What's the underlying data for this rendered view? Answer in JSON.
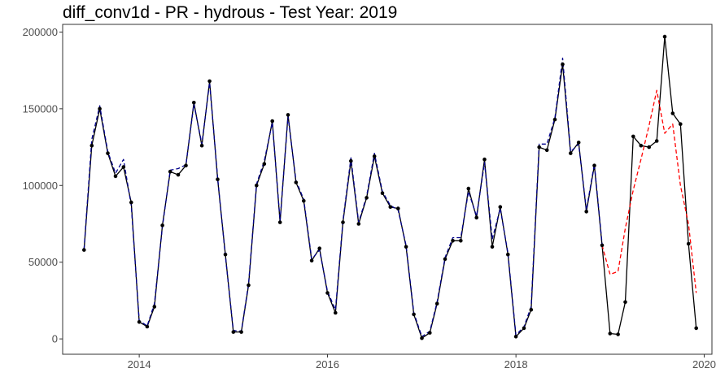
{
  "chart_data": {
    "type": "line",
    "title": "diff_conv1d - PR - hydrous - Test Year: 2019",
    "xlabel": "",
    "ylabel": "",
    "x_axis": {
      "type": "date",
      "range": [
        "2013-03-10",
        "2020-01-31"
      ],
      "ticks": [
        {
          "value": "2014-01-01",
          "label": "2014"
        },
        {
          "value": "2016-01-01",
          "label": "2016"
        },
        {
          "value": "2018-01-01",
          "label": "2018"
        },
        {
          "value": "2020-01-01",
          "label": "2020"
        }
      ]
    },
    "y_axis": {
      "range": [
        -10000,
        205000
      ],
      "ticks": [
        {
          "value": 0,
          "label": "0"
        },
        {
          "value": 50000,
          "label": "50000"
        },
        {
          "value": 100000,
          "label": "100000"
        },
        {
          "value": 150000,
          "label": "150000"
        },
        {
          "value": 200000,
          "label": "200000"
        }
      ]
    },
    "grid": false,
    "legend": "none",
    "series": [
      {
        "color": "#000000",
        "style": "solid-with-points",
        "points": [
          [
            "2013-06-01",
            58000
          ],
          [
            "2013-07-01",
            126000
          ],
          [
            "2013-08-01",
            150000
          ],
          [
            "2013-09-01",
            121000
          ],
          [
            "2013-10-01",
            106000
          ],
          [
            "2013-11-01",
            112000
          ],
          [
            "2013-12-01",
            89000
          ],
          [
            "2014-01-01",
            11000
          ],
          [
            "2014-02-01",
            8000
          ],
          [
            "2014-03-01",
            21000
          ],
          [
            "2014-04-01",
            74000
          ],
          [
            "2014-05-01",
            109000
          ],
          [
            "2014-06-01",
            107000
          ],
          [
            "2014-07-01",
            113000
          ],
          [
            "2014-08-01",
            154000
          ],
          [
            "2014-09-01",
            126000
          ],
          [
            "2014-10-01",
            168000
          ],
          [
            "2014-11-01",
            104000
          ],
          [
            "2014-12-01",
            55000
          ],
          [
            "2015-01-01",
            4500
          ],
          [
            "2015-02-01",
            4500
          ],
          [
            "2015-03-01",
            35000
          ],
          [
            "2015-04-01",
            100000
          ],
          [
            "2015-05-01",
            114000
          ],
          [
            "2015-06-01",
            142000
          ],
          [
            "2015-07-01",
            76000
          ],
          [
            "2015-08-01",
            146000
          ],
          [
            "2015-09-01",
            102000
          ],
          [
            "2015-10-01",
            90000
          ],
          [
            "2015-11-01",
            51000
          ],
          [
            "2015-12-01",
            59000
          ],
          [
            "2016-01-01",
            30000
          ],
          [
            "2016-02-01",
            17000
          ],
          [
            "2016-03-01",
            76000
          ],
          [
            "2016-04-01",
            116000
          ],
          [
            "2016-05-01",
            75000
          ],
          [
            "2016-06-01",
            92000
          ],
          [
            "2016-07-01",
            119000
          ],
          [
            "2016-08-01",
            95000
          ],
          [
            "2016-09-01",
            86000
          ],
          [
            "2016-10-01",
            85000
          ],
          [
            "2016-11-01",
            60000
          ],
          [
            "2016-12-01",
            16000
          ],
          [
            "2017-01-01",
            500
          ],
          [
            "2017-02-01",
            4000
          ],
          [
            "2017-03-01",
            23000
          ],
          [
            "2017-04-01",
            52000
          ],
          [
            "2017-05-01",
            64000
          ],
          [
            "2017-06-01",
            64000
          ],
          [
            "2017-07-01",
            98000
          ],
          [
            "2017-08-01",
            79000
          ],
          [
            "2017-09-01",
            117000
          ],
          [
            "2017-10-01",
            60000
          ],
          [
            "2017-11-01",
            86000
          ],
          [
            "2017-12-01",
            55000
          ],
          [
            "2018-01-01",
            1500
          ],
          [
            "2018-02-01",
            7000
          ],
          [
            "2018-03-01",
            19000
          ],
          [
            "2018-04-01",
            125000
          ],
          [
            "2018-05-01",
            123000
          ],
          [
            "2018-06-01",
            143000
          ],
          [
            "2018-07-01",
            179000
          ],
          [
            "2018-08-01",
            121000
          ],
          [
            "2018-09-01",
            128000
          ],
          [
            "2018-10-01",
            83000
          ],
          [
            "2018-11-01",
            113000
          ],
          [
            "2018-12-01",
            61000
          ],
          [
            "2019-01-01",
            3500
          ],
          [
            "2019-02-01",
            3000
          ],
          [
            "2019-03-01",
            24000
          ],
          [
            "2019-04-01",
            132000
          ],
          [
            "2019-05-01",
            126000
          ],
          [
            "2019-06-01",
            125000
          ],
          [
            "2019-07-01",
            129000
          ],
          [
            "2019-08-01",
            197000
          ],
          [
            "2019-09-01",
            147000
          ],
          [
            "2019-10-01",
            140000
          ],
          [
            "2019-11-01",
            62000
          ],
          [
            "2019-12-01",
            7000
          ]
        ]
      },
      {
        "color": "#00008b",
        "style": "dashed",
        "points": [
          [
            "2013-06-01",
            58500
          ],
          [
            "2013-07-01",
            130000
          ],
          [
            "2013-08-01",
            152000
          ],
          [
            "2013-09-01",
            122000
          ],
          [
            "2013-10-01",
            108000
          ],
          [
            "2013-11-01",
            117000
          ],
          [
            "2013-12-01",
            87000
          ],
          [
            "2014-01-01",
            12000
          ],
          [
            "2014-02-01",
            8500
          ],
          [
            "2014-03-01",
            23000
          ],
          [
            "2014-04-01",
            73000
          ],
          [
            "2014-05-01",
            110000
          ],
          [
            "2014-06-01",
            111000
          ],
          [
            "2014-07-01",
            113500
          ],
          [
            "2014-08-01",
            153000
          ],
          [
            "2014-09-01",
            127000
          ],
          [
            "2014-10-01",
            167000
          ],
          [
            "2014-11-01",
            105000
          ],
          [
            "2014-12-01",
            54000
          ],
          [
            "2015-01-01",
            5500
          ],
          [
            "2015-02-01",
            5000
          ],
          [
            "2015-03-01",
            36000
          ],
          [
            "2015-04-01",
            101000
          ],
          [
            "2015-05-01",
            116000
          ],
          [
            "2015-06-01",
            141000
          ],
          [
            "2015-07-01",
            77000
          ],
          [
            "2015-08-01",
            145000
          ],
          [
            "2015-09-01",
            103000
          ],
          [
            "2015-10-01",
            91000
          ],
          [
            "2015-11-01",
            52000
          ],
          [
            "2015-12-01",
            58000
          ],
          [
            "2016-01-01",
            31000
          ],
          [
            "2016-02-01",
            19000
          ],
          [
            "2016-03-01",
            77000
          ],
          [
            "2016-04-01",
            118000
          ],
          [
            "2016-05-01",
            76000
          ],
          [
            "2016-06-01",
            93000
          ],
          [
            "2016-07-01",
            121000
          ],
          [
            "2016-08-01",
            96000
          ],
          [
            "2016-09-01",
            87000
          ],
          [
            "2016-10-01",
            84000
          ],
          [
            "2016-11-01",
            61000
          ],
          [
            "2016-12-01",
            17000
          ],
          [
            "2017-01-01",
            1500
          ],
          [
            "2017-02-01",
            5000
          ],
          [
            "2017-03-01",
            24000
          ],
          [
            "2017-04-01",
            53000
          ],
          [
            "2017-05-01",
            66000
          ],
          [
            "2017-06-01",
            66000
          ],
          [
            "2017-07-01",
            96000
          ],
          [
            "2017-08-01",
            80000
          ],
          [
            "2017-09-01",
            115000
          ],
          [
            "2017-10-01",
            65000
          ],
          [
            "2017-11-01",
            85000
          ],
          [
            "2017-12-01",
            56000
          ],
          [
            "2018-01-01",
            2500
          ],
          [
            "2018-02-01",
            8000
          ],
          [
            "2018-03-01",
            21000
          ],
          [
            "2018-04-01",
            127000
          ],
          [
            "2018-05-01",
            127000
          ],
          [
            "2018-06-01",
            144000
          ],
          [
            "2018-07-01",
            183000
          ],
          [
            "2018-08-01",
            122000
          ],
          [
            "2018-09-01",
            127000
          ],
          [
            "2018-10-01",
            84000
          ],
          [
            "2018-11-01",
            114000
          ],
          [
            "2018-12-01",
            62000
          ]
        ]
      },
      {
        "color": "#ff0000",
        "style": "dashed",
        "points": [
          [
            "2018-12-01",
            61000
          ],
          [
            "2019-01-01",
            42000
          ],
          [
            "2019-02-01",
            44000
          ],
          [
            "2019-03-01",
            72000
          ],
          [
            "2019-04-01",
            97000
          ],
          [
            "2019-05-01",
            117000
          ],
          [
            "2019-06-01",
            139000
          ],
          [
            "2019-07-01",
            162000
          ],
          [
            "2019-08-01",
            134000
          ],
          [
            "2019-09-01",
            140000
          ],
          [
            "2019-10-01",
            100000
          ],
          [
            "2019-11-01",
            75000
          ],
          [
            "2019-12-01",
            30000
          ]
        ]
      }
    ]
  }
}
